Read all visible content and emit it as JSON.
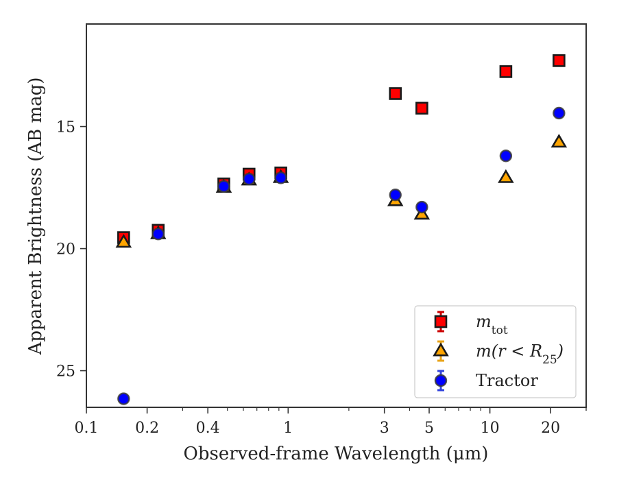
{
  "chart_data": {
    "type": "scatter",
    "xlabel": "Observed-frame Wavelength (μm)",
    "ylabel": "Apparent Brightness (AB mag)",
    "x_scale": "log",
    "y_inverted": true,
    "xlim": [
      0.1,
      30
    ],
    "ylim": [
      26.5,
      10.8
    ],
    "x_ticks": [
      {
        "value": 0.1,
        "label": "0.1"
      },
      {
        "value": 0.2,
        "label": "0.2"
      },
      {
        "value": 0.4,
        "label": "0.4"
      },
      {
        "value": 1,
        "label": "1"
      },
      {
        "value": 3,
        "label": "3"
      },
      {
        "value": 5,
        "label": "5"
      },
      {
        "value": 10,
        "label": "10"
      },
      {
        "value": 20,
        "label": "20"
      }
    ],
    "y_ticks": [
      {
        "value": 15,
        "label": "15"
      },
      {
        "value": 20,
        "label": "20"
      },
      {
        "value": 25,
        "label": "25"
      }
    ],
    "grid": false,
    "legend_position": "bottom-right",
    "series": [
      {
        "name": "m_tot",
        "legend_main": "m",
        "legend_sub": "tot",
        "marker": "square",
        "color": "#ff0000",
        "error_color": "#cc0000",
        "points": [
          {
            "x": 0.153,
            "y": 19.55
          },
          {
            "x": 0.227,
            "y": 19.25
          },
          {
            "x": 0.48,
            "y": 17.35
          },
          {
            "x": 0.64,
            "y": 16.95
          },
          {
            "x": 0.92,
            "y": 16.9
          },
          {
            "x": 3.4,
            "y": 13.65
          },
          {
            "x": 4.6,
            "y": 14.25
          },
          {
            "x": 12.0,
            "y": 12.75
          },
          {
            "x": 22.0,
            "y": 12.3
          }
        ]
      },
      {
        "name": "m(r<R25)",
        "legend_main": "m(r < R",
        "legend_sub": "25",
        "legend_end": ")",
        "marker": "triangle",
        "color": "#ffa500",
        "error_color": "#e8a317",
        "points": [
          {
            "x": 0.153,
            "y": 19.75
          },
          {
            "x": 0.227,
            "y": 19.4
          },
          {
            "x": 0.48,
            "y": 17.5
          },
          {
            "x": 0.64,
            "y": 17.2
          },
          {
            "x": 0.92,
            "y": 17.1
          },
          {
            "x": 3.4,
            "y": 18.05
          },
          {
            "x": 4.6,
            "y": 18.6
          },
          {
            "x": 12.0,
            "y": 17.1
          },
          {
            "x": 22.0,
            "y": 15.65
          }
        ]
      },
      {
        "name": "Tractor",
        "legend_main": "Tractor",
        "marker": "circle",
        "color": "#0000ff",
        "error_color": "#3344dd",
        "points": [
          {
            "x": 0.153,
            "y": 26.15
          },
          {
            "x": 0.227,
            "y": 19.4
          },
          {
            "x": 0.48,
            "y": 17.45
          },
          {
            "x": 0.64,
            "y": 17.15
          },
          {
            "x": 0.92,
            "y": 17.1
          },
          {
            "x": 3.4,
            "y": 17.8
          },
          {
            "x": 4.6,
            "y": 18.3
          },
          {
            "x": 12.0,
            "y": 16.2
          },
          {
            "x": 22.0,
            "y": 14.45
          }
        ]
      }
    ]
  }
}
